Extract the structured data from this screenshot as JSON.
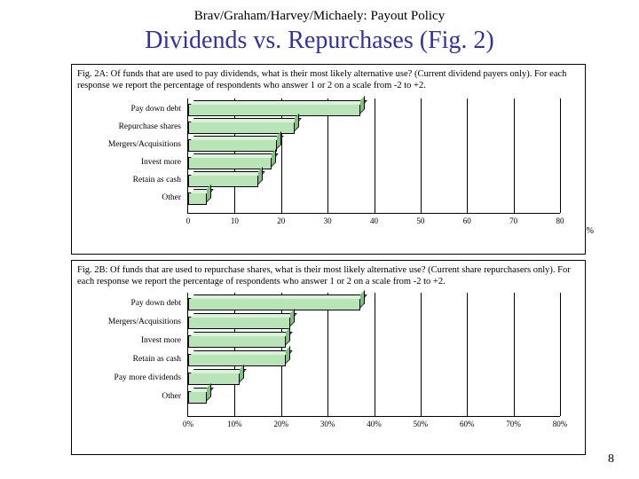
{
  "header_small": "Brav/Graham/Harvey/Michaely: Payout Policy",
  "header_large": "Dividends vs. Repurchases (Fig. 2)",
  "page_number": "8",
  "panelA": {
    "caption": "Fig. 2A: Of funds that are used to pay dividends, what is their most likely alternative use? (Current dividend payers only). For each response we report the percentage of respondents who answer 1 or 2 on a scale from -2 to +2.",
    "bar_fill": "#b8e4b8",
    "bar_top": "#d9f2d9",
    "bar_side": "#7fbf7f",
    "bar_border": "#000000",
    "x_ticks": [
      0,
      10,
      20,
      30,
      40,
      50,
      60,
      70,
      80
    ],
    "xlim_max": 80,
    "pct_label": "%",
    "bars": [
      {
        "label": "Pay down debt",
        "value": 37
      },
      {
        "label": "Repurchase shares",
        "value": 23
      },
      {
        "label": "Mergers/Acquisitions",
        "value": 19
      },
      {
        "label": "Invest more",
        "value": 18
      },
      {
        "label": "Retain as cash",
        "value": 15
      },
      {
        "label": "Other",
        "value": 4
      }
    ]
  },
  "panelB": {
    "caption": "Fig. 2B: Of funds that are used to repurchase shares, what is their most likely alternative use? (Current share repurchasers only). For each response we report the percentage of respondents who answer 1 or 2 on a scale from -2 to +2.",
    "bar_fill": "#b8e4b8",
    "bar_top": "#d9f2d9",
    "bar_side": "#7fbf7f",
    "bar_border": "#000000",
    "x_ticks": [
      "0%",
      "10%",
      "20%",
      "30%",
      "40%",
      "50%",
      "60%",
      "70%",
      "80%"
    ],
    "x_tick_vals": [
      0,
      10,
      20,
      30,
      40,
      50,
      60,
      70,
      80
    ],
    "xlim_max": 80,
    "bars": [
      {
        "label": "Pay down debt",
        "value": 37
      },
      {
        "label": "Mergers/Acquisitions",
        "value": 22
      },
      {
        "label": "Invest more",
        "value": 21
      },
      {
        "label": "Retain as cash",
        "value": 21
      },
      {
        "label": "Pay more dividends",
        "value": 11
      },
      {
        "label": "Other",
        "value": 4
      }
    ]
  }
}
